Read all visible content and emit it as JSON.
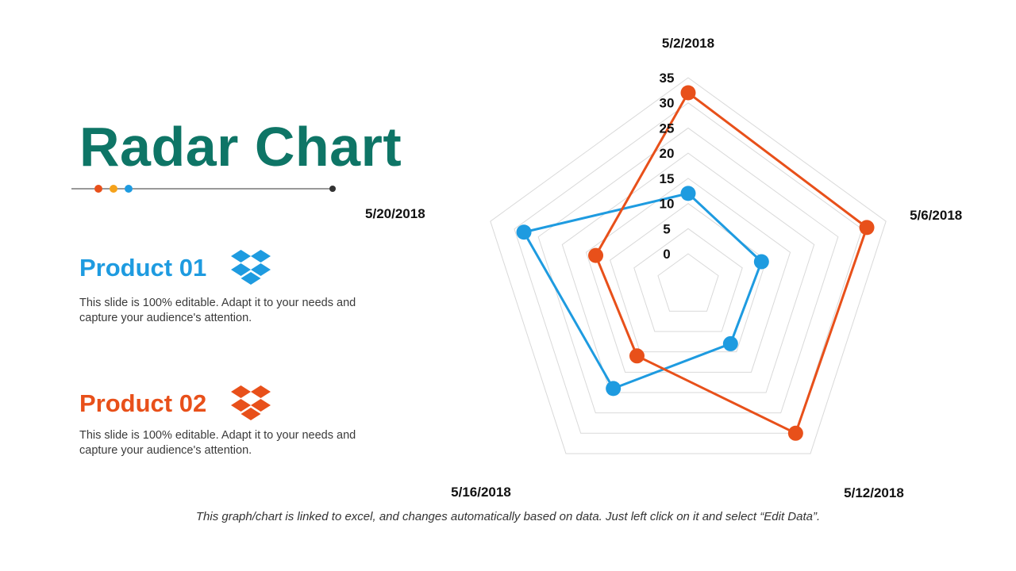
{
  "slide": {
    "title": "Radar Chart",
    "footnote": "This graph/chart is linked to excel, and changes automatically based on data. Just left click on it and select “Edit Data”."
  },
  "divider_dot_colors": [
    "#e8501a",
    "#f5a21b",
    "#1e9be0"
  ],
  "products": [
    {
      "title": "Product 01",
      "description": "This slide is 100% editable. Adapt it to your needs and capture your audience's attention.",
      "color": "#1e9be0",
      "icon": "dropbox-icon"
    },
    {
      "title": "Product 02",
      "description": "This slide is 100% editable. Adapt it to your needs and capture your audience's attention.",
      "color": "#e8501a",
      "icon": "dropbox-icon"
    }
  ],
  "chart_data": {
    "type": "radar",
    "categories": [
      "5/2/2018",
      "5/6/2018",
      "5/12/2018",
      "5/16/2018",
      "5/20/2018"
    ],
    "rlim": [
      0,
      35
    ],
    "ticks": [
      "0",
      "5",
      "10",
      "15",
      "20",
      "25",
      "30",
      "35"
    ],
    "tick_values": [
      0,
      5,
      10,
      15,
      20,
      25,
      30,
      35
    ],
    "grid": true,
    "series": [
      {
        "values": [
          12,
          9,
          8,
          19,
          28
        ],
        "color": "#1e9be0"
      },
      {
        "values": [
          32,
          31,
          30,
          11,
          13
        ],
        "color": "#e8501a"
      }
    ]
  }
}
